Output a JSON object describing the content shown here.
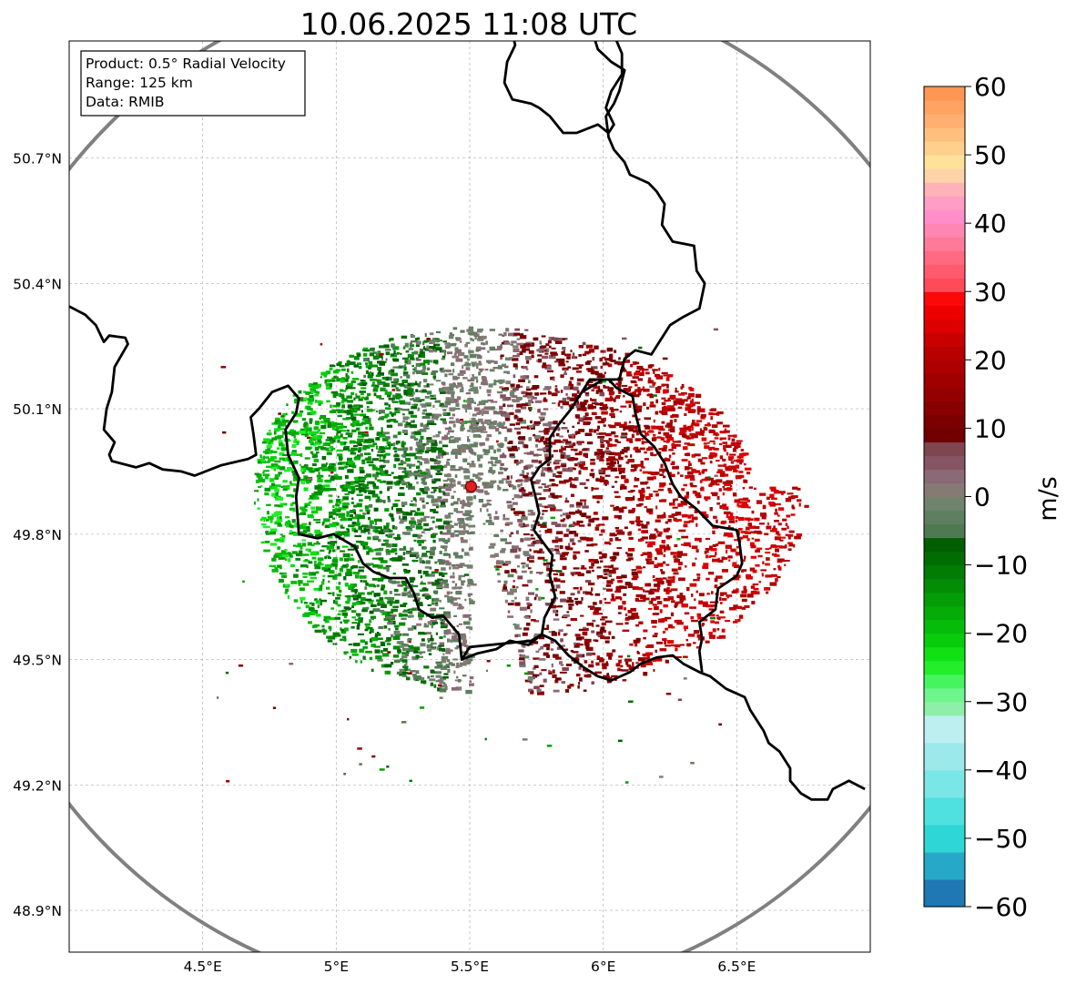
{
  "title": "10.06.2025 11:08 UTC",
  "info_box": {
    "product": "Product: 0.5° Radial Velocity",
    "range": "Range: 125 km",
    "source": "Data: RMIB"
  },
  "map": {
    "lon_range": [
      4.0,
      7.0
    ],
    "lat_range": [
      48.8,
      50.98
    ],
    "lon_ticks": [
      {
        "value": 4.5,
        "label": "4.5°E"
      },
      {
        "value": 5.0,
        "label": "5°E"
      },
      {
        "value": 5.5,
        "label": "5.5°E"
      },
      {
        "value": 6.0,
        "label": "6°E"
      },
      {
        "value": 6.5,
        "label": "6.5°E"
      }
    ],
    "lat_ticks": [
      {
        "value": 50.7,
        "label": "50.7°N"
      },
      {
        "value": 50.4,
        "label": "50.4°N"
      },
      {
        "value": 50.1,
        "label": "50.1°N"
      },
      {
        "value": 49.8,
        "label": "49.8°N"
      },
      {
        "value": 49.5,
        "label": "49.5°N"
      },
      {
        "value": 49.2,
        "label": "49.2°N"
      },
      {
        "value": 48.9,
        "label": "48.9°N"
      }
    ],
    "grid": true,
    "radar_site": {
      "lon": 5.505,
      "lat": 49.914
    },
    "range_ring_km": 125,
    "colors": {
      "range_ring": "#808080",
      "border": "#000000",
      "radar_marker": "#e02020"
    }
  },
  "colorbar": {
    "label": "m/s",
    "min": -60,
    "max": 60,
    "ticks": [
      {
        "value": 60,
        "label": "60"
      },
      {
        "value": 50,
        "label": "50"
      },
      {
        "value": 40,
        "label": "40"
      },
      {
        "value": 30,
        "label": "30"
      },
      {
        "value": 20,
        "label": "20"
      },
      {
        "value": 10,
        "label": "10"
      },
      {
        "value": 0,
        "label": "0"
      },
      {
        "value": -10,
        "label": "−10"
      },
      {
        "value": -20,
        "label": "−20"
      },
      {
        "value": -30,
        "label": "−30"
      },
      {
        "value": -40,
        "label": "−40"
      },
      {
        "value": -50,
        "label": "−50"
      },
      {
        "value": -60,
        "label": "−60"
      }
    ],
    "bands": [
      {
        "from": -60,
        "to": -56,
        "color": "#1f77b4"
      },
      {
        "from": -56,
        "to": -52,
        "color": "#26a9c9"
      },
      {
        "from": -52,
        "to": -48,
        "color": "#2ed6d6"
      },
      {
        "from": -48,
        "to": -44,
        "color": "#4fe0e0"
      },
      {
        "from": -44,
        "to": -40,
        "color": "#7ae6e6"
      },
      {
        "from": -40,
        "to": -36,
        "color": "#9ce9ea"
      },
      {
        "from": -36,
        "to": -32,
        "color": "#bdeff0"
      },
      {
        "from": -32,
        "to": -30,
        "color": "#8ef0a8"
      },
      {
        "from": -30,
        "to": -28,
        "color": "#6ef58e"
      },
      {
        "from": -28,
        "to": -26,
        "color": "#45f560"
      },
      {
        "from": -26,
        "to": -24,
        "color": "#22ee2a"
      },
      {
        "from": -24,
        "to": -22,
        "color": "#10e014"
      },
      {
        "from": -22,
        "to": -20,
        "color": "#08cc0c"
      },
      {
        "from": -20,
        "to": -18,
        "color": "#06bc0a"
      },
      {
        "from": -18,
        "to": -16,
        "color": "#05ac08"
      },
      {
        "from": -16,
        "to": -14,
        "color": "#049c07"
      },
      {
        "from": -14,
        "to": -12,
        "color": "#038c06"
      },
      {
        "from": -12,
        "to": -10,
        "color": "#037c05"
      },
      {
        "from": -10,
        "to": -8,
        "color": "#026c04"
      },
      {
        "from": -8,
        "to": -6,
        "color": "#015e03"
      },
      {
        "from": -6,
        "to": -4,
        "color": "#4e7a52"
      },
      {
        "from": -4,
        "to": -2,
        "color": "#5e7f60"
      },
      {
        "from": -2,
        "to": 0,
        "color": "#6f836d"
      },
      {
        "from": 0,
        "to": 2,
        "color": "#877a74"
      },
      {
        "from": 2,
        "to": 4,
        "color": "#8a6a76"
      },
      {
        "from": 4,
        "to": 6,
        "color": "#855564"
      },
      {
        "from": 6,
        "to": 8,
        "color": "#7f4650"
      },
      {
        "from": 8,
        "to": 10,
        "color": "#700000"
      },
      {
        "from": 10,
        "to": 12,
        "color": "#7c0000"
      },
      {
        "from": 12,
        "to": 14,
        "color": "#880000"
      },
      {
        "from": 14,
        "to": 16,
        "color": "#940000"
      },
      {
        "from": 16,
        "to": 18,
        "color": "#a00000"
      },
      {
        "from": 18,
        "to": 20,
        "color": "#ac0000"
      },
      {
        "from": 20,
        "to": 22,
        "color": "#b80000"
      },
      {
        "from": 22,
        "to": 24,
        "color": "#c80000"
      },
      {
        "from": 24,
        "to": 26,
        "color": "#dc0000"
      },
      {
        "from": 26,
        "to": 28,
        "color": "#ee0000"
      },
      {
        "from": 28,
        "to": 30,
        "color": "#fc0808"
      },
      {
        "from": 30,
        "to": 32,
        "color": "#ff4a5a"
      },
      {
        "from": 32,
        "to": 34,
        "color": "#ff5a6e"
      },
      {
        "from": 34,
        "to": 36,
        "color": "#ff6a80"
      },
      {
        "from": 36,
        "to": 38,
        "color": "#ff7a98"
      },
      {
        "from": 38,
        "to": 40,
        "color": "#ff86b2"
      },
      {
        "from": 40,
        "to": 42,
        "color": "#ff8ecb"
      },
      {
        "from": 42,
        "to": 44,
        "color": "#ff9ec4"
      },
      {
        "from": 44,
        "to": 46,
        "color": "#ffb2b8"
      },
      {
        "from": 46,
        "to": 48,
        "color": "#ffd2a8"
      },
      {
        "from": 48,
        "to": 50,
        "color": "#ffe29a"
      },
      {
        "from": 50,
        "to": 52,
        "color": "#ffd08c"
      },
      {
        "from": 52,
        "to": 54,
        "color": "#ffc07e"
      },
      {
        "from": 54,
        "to": 56,
        "color": "#ffb070"
      },
      {
        "from": 56,
        "to": 58,
        "color": "#ffa262"
      },
      {
        "from": 58,
        "to": 60,
        "color": "#ff9654"
      }
    ]
  }
}
